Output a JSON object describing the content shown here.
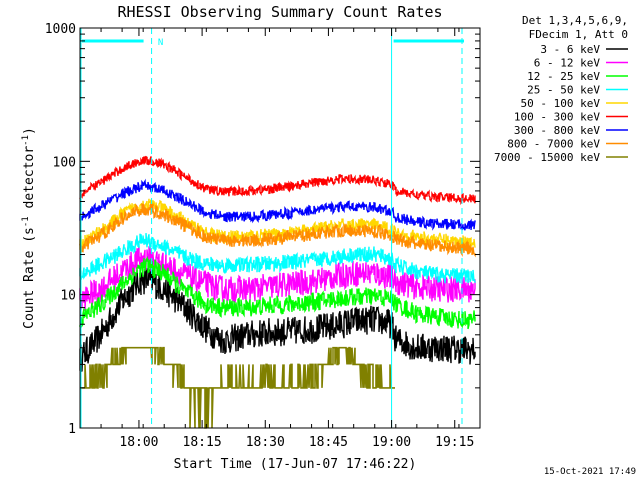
{
  "chart_data": {
    "type": "line",
    "title": "RHESSI Observing Summary Count Rates",
    "xlabel": "Start Time (17-Jun-07 17:46:22)",
    "ylabel_main": "Count Rate (s",
    "ylabel_sup1": "-1",
    "ylabel_mid": " detector",
    "ylabel_sup2": "-1",
    "ylabel_end": ")",
    "yscale": "log",
    "ylim": [
      1,
      1000
    ],
    "xlim_minutes": [
      0,
      95
    ],
    "x_ticks": [
      {
        "min": 14,
        "label": "18:00"
      },
      {
        "min": 29,
        "label": "18:15"
      },
      {
        "min": 44,
        "label": "18:30"
      },
      {
        "min": 59,
        "label": "18:45"
      },
      {
        "min": 74,
        "label": "19:00"
      },
      {
        "min": 89,
        "label": "19:15"
      }
    ],
    "y_ticks": [
      {
        "value": 1,
        "label": "1"
      },
      {
        "value": 10,
        "label": "10"
      },
      {
        "value": 100,
        "label": "100"
      },
      {
        "value": 1000,
        "label": "1000"
      }
    ],
    "legend_header": [
      "Det 1,3,4,5,6,9,",
      "FDecim 1, Att 0"
    ],
    "series": [
      {
        "name": "3 - 6 keV",
        "color": "#000000",
        "x": [
          0,
          5,
          10,
          14,
          16,
          20,
          25,
          30,
          34,
          40,
          45,
          50,
          55,
          60,
          65,
          70,
          74,
          75,
          80,
          85,
          90,
          94
        ],
        "y": [
          3.3,
          5.0,
          9.0,
          12.5,
          13.0,
          11.0,
          8.0,
          5.5,
          4.5,
          5.0,
          5.2,
          5.3,
          5.5,
          5.8,
          6.3,
          6.5,
          6.0,
          4.6,
          4.0,
          4.0,
          3.9,
          3.8
        ]
      },
      {
        "name": "6 - 12 keV",
        "color": "#ff00ff",
        "x": [
          0,
          5,
          10,
          14,
          16,
          20,
          25,
          30,
          34,
          40,
          45,
          50,
          55,
          60,
          65,
          70,
          74,
          75,
          80,
          85,
          90,
          94
        ],
        "y": [
          9.0,
          11.0,
          15.0,
          18.5,
          19.0,
          17.0,
          14.0,
          12.0,
          11.0,
          11.0,
          11.5,
          12.0,
          12.5,
          13.5,
          14.5,
          14.5,
          13.5,
          12.5,
          11.5,
          11.0,
          11.0,
          11.0
        ]
      },
      {
        "name": "12 - 25 keV",
        "color": "#00ff00",
        "x": [
          0,
          5,
          10,
          14,
          16,
          20,
          25,
          30,
          34,
          40,
          45,
          50,
          55,
          60,
          65,
          70,
          74,
          75,
          80,
          85,
          90,
          94
        ],
        "y": [
          6.5,
          8.5,
          12.0,
          15.5,
          16.5,
          14.5,
          10.5,
          8.5,
          8.0,
          8.0,
          8.3,
          8.5,
          8.8,
          9.2,
          9.6,
          9.7,
          9.3,
          8.5,
          7.2,
          6.8,
          6.5,
          6.5
        ]
      },
      {
        "name": "25 - 50 keV",
        "color": "#00ffff",
        "x": [
          0,
          5,
          10,
          14,
          16,
          20,
          25,
          30,
          34,
          40,
          45,
          50,
          55,
          60,
          65,
          70,
          74,
          75,
          80,
          85,
          90,
          94
        ],
        "y": [
          14.0,
          17.0,
          21.0,
          25.0,
          25.5,
          23.0,
          19.0,
          17.0,
          16.5,
          16.8,
          17.0,
          17.5,
          18.0,
          19.0,
          20.0,
          20.0,
          18.5,
          16.5,
          15.0,
          14.0,
          13.8,
          13.8
        ]
      },
      {
        "name": "50 - 100 keV",
        "color": "#ffd700",
        "x": [
          0,
          5,
          10,
          14,
          16,
          20,
          25,
          30,
          34,
          40,
          45,
          50,
          55,
          60,
          65,
          70,
          74,
          75,
          80,
          85,
          90,
          94
        ],
        "y": [
          24.0,
          30.0,
          40.0,
          47.0,
          48.0,
          44.0,
          35.0,
          29.0,
          27.0,
          27.5,
          28.0,
          29.0,
          30.5,
          32.5,
          33.5,
          33.0,
          31.0,
          29.0,
          27.0,
          26.0,
          25.0,
          25.0
        ]
      },
      {
        "name": "100 - 300 keV",
        "color": "#ff0000",
        "x": [
          0,
          5,
          10,
          14,
          16,
          20,
          25,
          30,
          34,
          40,
          45,
          50,
          55,
          60,
          65,
          70,
          74,
          75,
          80,
          85,
          90,
          94
        ],
        "y": [
          56.0,
          70.0,
          88.0,
          100.0,
          102.0,
          95.0,
          76.0,
          62.0,
          59.0,
          60.0,
          62.0,
          65.0,
          69.0,
          73.0,
          74.0,
          72.0,
          67.0,
          60.0,
          56.0,
          54.0,
          53.0,
          52.0
        ]
      },
      {
        "name": "300 - 800 keV",
        "color": "#0000ff",
        "x": [
          0,
          5,
          10,
          14,
          16,
          20,
          25,
          30,
          34,
          40,
          45,
          50,
          55,
          60,
          65,
          70,
          74,
          75,
          80,
          85,
          90,
          94
        ],
        "y": [
          38.0,
          46.0,
          57.0,
          64.0,
          65.0,
          60.0,
          50.0,
          41.0,
          38.5,
          38.5,
          39.5,
          41.0,
          43.0,
          45.0,
          46.0,
          45.0,
          42.0,
          38.0,
          35.0,
          34.0,
          33.5,
          33.0
        ]
      },
      {
        "name": "800 - 7000 keV",
        "color": "#ff8c00",
        "x": [
          0,
          5,
          10,
          14,
          16,
          20,
          25,
          30,
          34,
          40,
          45,
          50,
          55,
          60,
          65,
          70,
          74,
          75,
          80,
          85,
          90,
          94
        ],
        "y": [
          22.0,
          28.0,
          37.0,
          43.0,
          44.0,
          40.0,
          33.0,
          27.0,
          25.5,
          25.5,
          26.0,
          27.0,
          28.5,
          30.0,
          30.5,
          30.0,
          28.0,
          26.0,
          24.0,
          23.0,
          22.5,
          22.0
        ]
      },
      {
        "name": "7000 - 15000 keV",
        "color": "#808000",
        "x": [
          0,
          3,
          6,
          9,
          12,
          15,
          18,
          21,
          24,
          27,
          30,
          33,
          36,
          39,
          42,
          45,
          48,
          51,
          54,
          57,
          60,
          63,
          66,
          69,
          72,
          75
        ],
        "y": [
          1.5,
          1.8,
          2.2,
          3.0,
          3.5,
          4.0,
          3.2,
          2.6,
          1.9,
          1.3,
          1.2,
          1.6,
          1.8,
          1.5,
          1.6,
          1.9,
          1.7,
          1.8,
          2.0,
          2.2,
          3.0,
          3.2,
          2.6,
          1.9,
          1.7,
          1.4
        ]
      }
    ],
    "markers": [
      {
        "type": "attenuator",
        "x_start": 74,
        "label": ""
      },
      {
        "type": "segment",
        "x_start": 0,
        "x_end": 17,
        "label": "N"
      }
    ],
    "timestamp": "15-Oct-2021 17:49"
  }
}
